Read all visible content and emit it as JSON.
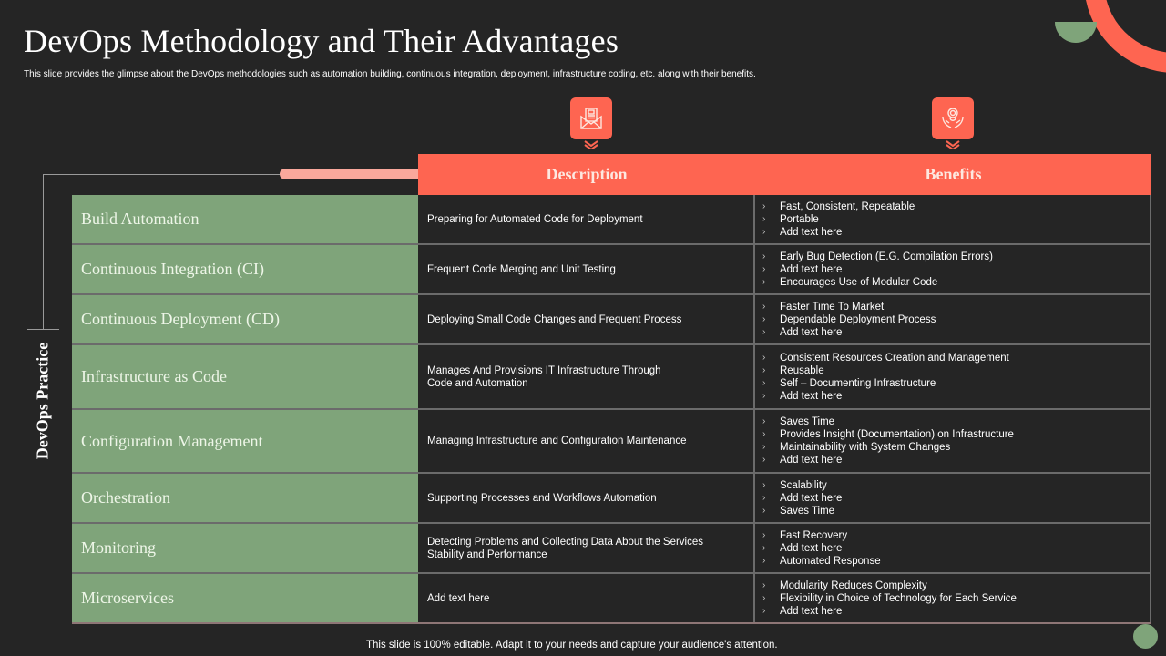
{
  "slide": {
    "title": "DevOps Methodology and Their Advantages",
    "subtitle": "This slide provides the glimpse about the DevOps methodologies such as automation building, continuous integration, deployment, infrastructure coding, etc. along with their benefits.",
    "footer": "This slide is 100% editable. Adapt it to your needs and capture your audience's attention.",
    "side_label": "DevOps Practice"
  },
  "colors": {
    "background": "#252525",
    "accent": "#fe6551",
    "green": "#7fa47a",
    "pill": "#f9a89c"
  },
  "icons": {
    "description": "envelope-document-icon",
    "benefits": "hands-coin-icon"
  },
  "table": {
    "headers": {
      "description": "Description",
      "benefits": "Benefits"
    },
    "rows": [
      {
        "practice": "Build Automation",
        "description": "Preparing for Automated Code for Deployment",
        "benefits": [
          "Fast, Consistent, Repeatable",
          "Portable",
          "Add text here"
        ]
      },
      {
        "practice": "Continuous Integration (CI)",
        "description": "Frequent Code Merging and Unit Testing",
        "benefits": [
          "Early Bug Detection (E.G.  Compilation Errors)",
          "Add text here",
          "Encourages Use of Modular Code"
        ]
      },
      {
        "practice": "Continuous Deployment (CD)",
        "description": "Deploying Small Code Changes and Frequent Process",
        "benefits": [
          "Faster Time To Market",
          "Dependable Deployment Process",
          "Add text here"
        ]
      },
      {
        "practice": "Infrastructure as Code",
        "description": "Manages And Provisions IT Infrastructure Through\nCode and Automation",
        "benefits": [
          "Consistent Resources Creation and Management",
          "Reusable",
          "Self – Documenting Infrastructure",
          "Add text here"
        ]
      },
      {
        "practice": "Configuration Management",
        "description": "Managing Infrastructure and Configuration Maintenance",
        "benefits": [
          "Saves Time",
          "Provides Insight (Documentation) on Infrastructure",
          "Maintainability with System Changes",
          "Add text here"
        ]
      },
      {
        "practice": "Orchestration",
        "description": "Supporting Processes and Workflows Automation",
        "benefits": [
          "Scalability",
          "Add text here",
          "Saves Time"
        ]
      },
      {
        "practice": "Monitoring",
        "description": "Detecting Problems and Collecting Data About the Services\nStability and Performance",
        "benefits": [
          "Fast Recovery",
          "Add text here",
          "Automated Response"
        ]
      },
      {
        "practice": "Microservices",
        "description": "Add text here",
        "benefits": [
          "Modularity Reduces Complexity",
          "Flexibility in Choice of Technology for Each Service",
          "Add text here"
        ]
      }
    ]
  }
}
